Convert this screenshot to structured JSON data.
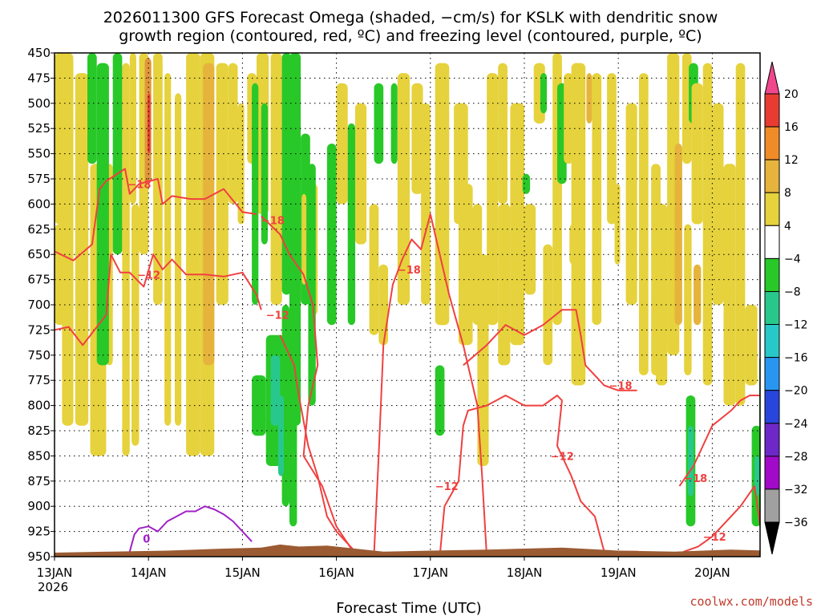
{
  "chart_data": {
    "type": "heatmap",
    "title_line1": "2026011300 GFS Forecast Omega (shaded, −cm/s) for KSLK with dendritic snow",
    "title_line2": "growth region (contoured, red, ºC) and freezing level (contoured, purple, ºC)",
    "xlabel": "Forecast Time (UTC)",
    "credit": "coolwx.com/models",
    "x_year_label": "2026",
    "x_ticks": [
      "13JAN",
      "14JAN",
      "15JAN",
      "16JAN",
      "17JAN",
      "18JAN",
      "19JAN",
      "20JAN"
    ],
    "y_ticks": [
      "450",
      "475",
      "500",
      "525",
      "550",
      "575",
      "600",
      "625",
      "650",
      "675",
      "700",
      "725",
      "750",
      "775",
      "800",
      "825",
      "850",
      "875",
      "900",
      "925",
      "950"
    ],
    "xlim_days": [
      0,
      7.6
    ],
    "ylim_hpa": [
      450,
      950
    ],
    "grid": "dotted",
    "colorbar": {
      "labels": [
        "20",
        "16",
        "12",
        "8",
        "4",
        "−4",
        "−8",
        "−12",
        "−16",
        "−20",
        "−24",
        "−28",
        "−32",
        "−36"
      ],
      "colors": [
        "#f0488c",
        "#e83c32",
        "#f08c28",
        "#e6b43c",
        "#e6d23c",
        "#ffffff",
        "#28c828",
        "#28c88c",
        "#28c8c8",
        "#2896f0",
        "#2846dc",
        "#6e28c8",
        "#a00ac8",
        "#a0a0a0",
        "#000000"
      ]
    },
    "shading": {
      "yellow": "#e6d23c",
      "orange": "#e6b43c",
      "dark_orange": "#e0963c",
      "red": "#e83c32",
      "green": "#28c828",
      "teal": "#28c88c",
      "cyan": "#3cc8c8"
    },
    "dgz_contours": {
      "color": "#f04040",
      "labels": [
        "−18",
        "−12"
      ],
      "minus18_a": [
        [
          0,
          647
        ],
        [
          0.2,
          656
        ],
        [
          0.4,
          640
        ],
        [
          0.48,
          585
        ],
        [
          0.55,
          577
        ],
        [
          0.62,
          573
        ],
        [
          0.75,
          565
        ],
        [
          0.8,
          590
        ],
        [
          0.9,
          580
        ],
        [
          1.1,
          575
        ],
        [
          1.15,
          600
        ],
        [
          1.25,
          592
        ],
        [
          1.45,
          595
        ],
        [
          1.6,
          595
        ],
        [
          1.8,
          585
        ],
        [
          2.0,
          608
        ],
        [
          2.15,
          610
        ]
      ],
      "minus12_a": [
        [
          0,
          725
        ],
        [
          0.15,
          722
        ],
        [
          0.3,
          740
        ],
        [
          0.55,
          710
        ],
        [
          0.6,
          650
        ],
        [
          0.7,
          668
        ],
        [
          0.8,
          668
        ],
        [
          0.95,
          682
        ],
        [
          1.05,
          650
        ],
        [
          1.15,
          665
        ],
        [
          1.25,
          655
        ],
        [
          1.4,
          670
        ],
        [
          1.6,
          670
        ],
        [
          1.8,
          672
        ],
        [
          2.0,
          668
        ],
        [
          2.15,
          690
        ],
        [
          2.2,
          705
        ]
      ],
      "minus12_b": [
        [
          2.4,
          730
        ],
        [
          2.55,
          760
        ],
        [
          2.6,
          790
        ],
        [
          2.7,
          840
        ],
        [
          2.8,
          870
        ],
        [
          2.9,
          910
        ],
        [
          3.0,
          925
        ],
        [
          3.1,
          935
        ],
        [
          3.2,
          945
        ]
      ],
      "minus18_b": [
        [
          2.2,
          612
        ],
        [
          2.4,
          630
        ],
        [
          2.5,
          650
        ],
        [
          2.65,
          670
        ],
        [
          2.75,
          700
        ],
        [
          2.8,
          760
        ],
        [
          2.7,
          800
        ],
        [
          2.65,
          850
        ],
        [
          2.85,
          880
        ],
        [
          3.0,
          920
        ],
        [
          3.2,
          948
        ]
      ],
      "minus12_c": [
        [
          3.4,
          948
        ],
        [
          3.45,
          850
        ],
        [
          3.5,
          740
        ],
        [
          3.6,
          680
        ],
        [
          3.7,
          655
        ],
        [
          3.8,
          635
        ],
        [
          3.9,
          645
        ],
        [
          4.0,
          610
        ],
        [
          4.1,
          650
        ],
        [
          4.2,
          690
        ],
        [
          4.35,
          740
        ],
        [
          4.5,
          800
        ],
        [
          4.55,
          870
        ],
        [
          4.6,
          950
        ]
      ],
      "minus12_d": [
        [
          4.1,
          950
        ],
        [
          4.15,
          900
        ],
        [
          4.3,
          875
        ],
        [
          4.35,
          820
        ],
        [
          4.4,
          805
        ],
        [
          4.6,
          800
        ],
        [
          4.8,
          790
        ],
        [
          5.0,
          800
        ],
        [
          5.2,
          800
        ],
        [
          5.35,
          790
        ],
        [
          5.4,
          795
        ],
        [
          5.35,
          840
        ],
        [
          5.5,
          870
        ],
        [
          5.6,
          895
        ],
        [
          5.75,
          910
        ],
        [
          5.85,
          945
        ],
        [
          6.2,
          945
        ],
        [
          6.5,
          948
        ]
      ],
      "minus18_c": [
        [
          4.35,
          760
        ],
        [
          4.6,
          740
        ],
        [
          4.8,
          720
        ],
        [
          5.0,
          730
        ],
        [
          5.2,
          720
        ],
        [
          5.4,
          705
        ],
        [
          5.55,
          705
        ],
        [
          5.6,
          730
        ],
        [
          5.65,
          760
        ],
        [
          5.75,
          770
        ],
        [
          5.85,
          780
        ],
        [
          6.0,
          785
        ],
        [
          6.2,
          785
        ]
      ],
      "minus12_e": [
        [
          6.6,
          950
        ],
        [
          6.7,
          945
        ],
        [
          6.85,
          940
        ],
        [
          7.0,
          930
        ],
        [
          7.2,
          910
        ],
        [
          7.3,
          900
        ],
        [
          7.45,
          880
        ],
        [
          7.55,
          945
        ]
      ],
      "minus18_d": [
        [
          6.65,
          880
        ],
        [
          6.8,
          860
        ],
        [
          7.0,
          820
        ],
        [
          7.2,
          805
        ],
        [
          7.3,
          795
        ],
        [
          7.4,
          790
        ],
        [
          7.55,
          790
        ]
      ]
    },
    "freezing_contour": {
      "color": "#a020c8",
      "label": "0",
      "points": [
        [
          0.8,
          945
        ],
        [
          0.85,
          928
        ],
        [
          0.9,
          922
        ],
        [
          1.0,
          920
        ],
        [
          1.1,
          925
        ],
        [
          1.2,
          915
        ],
        [
          1.3,
          910
        ],
        [
          1.4,
          905
        ],
        [
          1.5,
          905
        ],
        [
          1.6,
          900
        ],
        [
          1.7,
          903
        ],
        [
          1.8,
          908
        ],
        [
          1.9,
          915
        ],
        [
          2.0,
          925
        ],
        [
          2.1,
          935
        ]
      ]
    }
  }
}
